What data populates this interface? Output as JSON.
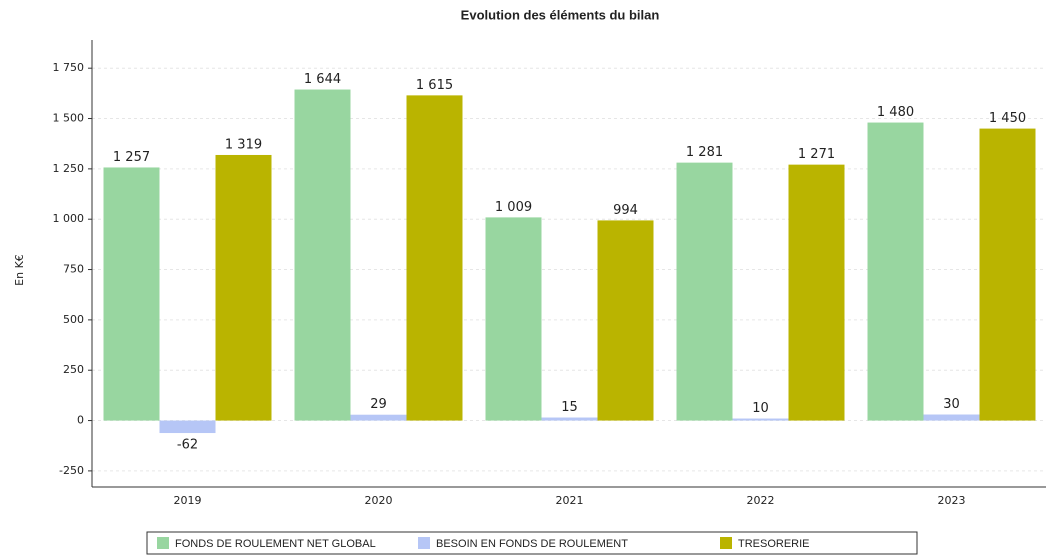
{
  "chart_data": {
    "type": "bar",
    "title": "Evolution des éléments du bilan",
    "y_label": "En K€",
    "categories": [
      "2019",
      "2020",
      "2021",
      "2022",
      "2023"
    ],
    "series": [
      {
        "name": "FONDS DE ROULEMENT NET GLOBAL",
        "color": "#98d6a0",
        "values": [
          1257,
          1644,
          1009,
          1281,
          1480
        ],
        "value_labels": [
          "1 257",
          "1 644",
          "1 009",
          "1 281",
          "1 480"
        ]
      },
      {
        "name": "BESOIN EN FONDS DE ROULEMENT",
        "color": "#b6c6f6",
        "values": [
          -62,
          29,
          15,
          10,
          30
        ]
      },
      {
        "name": "TRESORERIE",
        "color": "#bab400",
        "values": [
          1319,
          1615,
          994,
          1271,
          1450
        ],
        "value_labels": [
          "1 319",
          "1 615",
          "994",
          "1 271",
          "1 450"
        ]
      }
    ],
    "ylim": [
      -330,
      1890
    ],
    "yticks": [
      -250,
      0,
      250,
      500,
      750,
      {
        "value": 1000,
        "label": "1 000"
      },
      {
        "value": 1250,
        "label": "1 250"
      },
      {
        "value": 1500,
        "label": "1 500"
      },
      {
        "value": 1750,
        "label": "1 750"
      }
    ],
    "grid": true
  }
}
